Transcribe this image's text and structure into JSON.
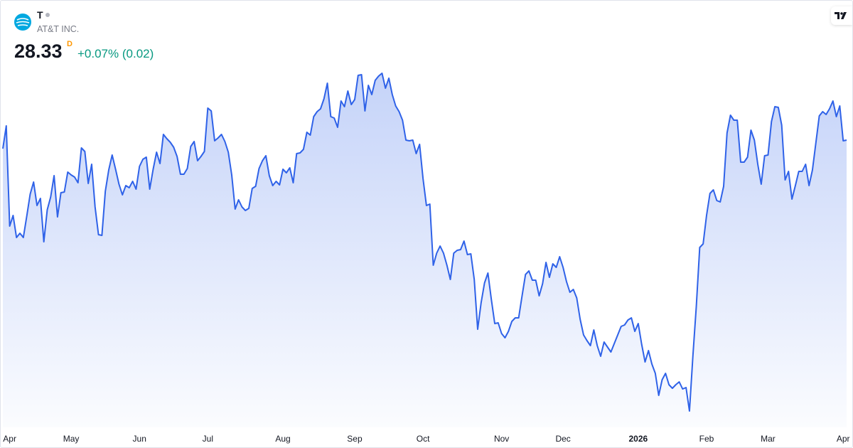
{
  "header": {
    "symbol": "T",
    "name": "AT&T INC.",
    "price": "28.33",
    "interval": "D",
    "change": "+0.07% (0.02)"
  },
  "chart_data": {
    "type": "area",
    "color": "#2f62e8",
    "ylim": [
      24.29,
      30.29
    ],
    "categories": [
      null,
      null,
      "Apr",
      null,
      null,
      null,
      null,
      null,
      null,
      null,
      null,
      null,
      null,
      null,
      null,
      null,
      null,
      null,
      null,
      null,
      "May",
      null,
      null,
      null,
      null,
      null,
      null,
      null,
      null,
      null,
      null,
      null,
      null,
      null,
      null,
      null,
      null,
      null,
      null,
      null,
      "Jun",
      null,
      null,
      null,
      null,
      null,
      null,
      null,
      null,
      null,
      null,
      null,
      null,
      null,
      null,
      null,
      null,
      null,
      null,
      null,
      "Jul",
      null,
      null,
      null,
      null,
      null,
      null,
      null,
      null,
      null,
      null,
      null,
      null,
      null,
      null,
      null,
      null,
      null,
      null,
      null,
      null,
      null,
      "Aug",
      null,
      null,
      null,
      null,
      null,
      null,
      null,
      null,
      null,
      null,
      null,
      null,
      null,
      null,
      null,
      null,
      null,
      null,
      null,
      null,
      "Sep",
      null,
      null,
      null,
      null,
      null,
      null,
      null,
      null,
      null,
      null,
      null,
      null,
      null,
      null,
      null,
      null,
      null,
      null,
      null,
      "Oct",
      null,
      null,
      null,
      null,
      null,
      null,
      null,
      null,
      null,
      null,
      null,
      null,
      null,
      null,
      null,
      null,
      null,
      null,
      null,
      null,
      null,
      null,
      "Nov",
      null,
      null,
      null,
      null,
      null,
      null,
      null,
      null,
      null,
      null,
      null,
      null,
      null,
      null,
      null,
      null,
      null,
      "Dec",
      null,
      null,
      null,
      null,
      null,
      null,
      null,
      null,
      null,
      null,
      null,
      null,
      null,
      null,
      null,
      null,
      null,
      null,
      null,
      null,
      null,
      "2026",
      null,
      null,
      null,
      null,
      null,
      null,
      null,
      null,
      null,
      null,
      null,
      null,
      null,
      null,
      null,
      null,
      null,
      null,
      null,
      "Feb",
      null,
      null,
      null,
      null,
      null,
      null,
      null,
      null,
      null,
      null,
      null,
      null,
      null,
      null,
      null,
      null,
      null,
      "Mar",
      null,
      null,
      null,
      null,
      null,
      null,
      null,
      null,
      null,
      null,
      null,
      null,
      null,
      null,
      null,
      null,
      null,
      null,
      null,
      null,
      null,
      "Apr",
      null
    ],
    "values": [
      28.21,
      28.53,
      27.12,
      27.27,
      26.96,
      27.02,
      26.96,
      27.26,
      27.57,
      27.74,
      27.41,
      27.51,
      26.9,
      27.35,
      27.53,
      27.83,
      27.25,
      27.59,
      27.6,
      27.88,
      27.84,
      27.81,
      27.73,
      28.22,
      28.17,
      27.72,
      27.99,
      27.39,
      27.0,
      26.99,
      27.61,
      27.91,
      28.12,
      27.92,
      27.71,
      27.56,
      27.69,
      27.66,
      27.75,
      27.64,
      27.96,
      28.06,
      28.09,
      27.64,
      27.92,
      28.16,
      28.0,
      28.41,
      28.35,
      28.3,
      28.23,
      28.1,
      27.85,
      27.85,
      27.93,
      28.24,
      28.31,
      28.04,
      28.1,
      28.17,
      28.78,
      28.74,
      28.32,
      28.36,
      28.41,
      28.31,
      28.16,
      27.84,
      27.36,
      27.49,
      27.39,
      27.34,
      27.37,
      27.65,
      27.68,
      27.93,
      28.04,
      28.11,
      27.83,
      27.69,
      27.75,
      27.7,
      27.92,
      27.87,
      27.94,
      27.73,
      28.14,
      28.15,
      28.2,
      28.44,
      28.4,
      28.66,
      28.73,
      28.77,
      28.91,
      29.13,
      28.66,
      28.64,
      28.51,
      28.88,
      28.8,
      29.02,
      28.83,
      28.9,
      29.24,
      29.25,
      28.74,
      29.1,
      28.97,
      29.17,
      29.23,
      29.27,
      29.06,
      29.2,
      28.97,
      28.81,
      28.73,
      28.61,
      28.33,
      28.32,
      28.33,
      28.14,
      28.27,
      27.79,
      27.41,
      27.43,
      26.57,
      26.74,
      26.84,
      26.74,
      26.57,
      26.37,
      26.74,
      26.78,
      26.79,
      26.91,
      26.72,
      26.73,
      26.37,
      25.67,
      26.04,
      26.32,
      26.46,
      26.09,
      25.75,
      25.76,
      25.61,
      25.55,
      25.64,
      25.78,
      25.83,
      25.83,
      26.14,
      26.44,
      26.49,
      26.36,
      26.36,
      26.14,
      26.31,
      26.61,
      26.4,
      26.59,
      26.54,
      26.69,
      26.54,
      26.34,
      26.19,
      26.23,
      26.11,
      25.81,
      25.59,
      25.51,
      25.44,
      25.66,
      25.44,
      25.29,
      25.49,
      25.42,
      25.35,
      25.47,
      25.59,
      25.71,
      25.73,
      25.8,
      25.83,
      25.64,
      25.75,
      25.46,
      25.21,
      25.37,
      25.18,
      25.05,
      24.74,
      24.96,
      25.05,
      24.89,
      24.84,
      24.89,
      24.93,
      24.83,
      24.85,
      24.52,
      25.29,
      25.99,
      26.82,
      26.87,
      27.27,
      27.58,
      27.63,
      27.48,
      27.46,
      27.68,
      28.43,
      28.68,
      28.61,
      28.61,
      28.02,
      28.02,
      28.09,
      28.47,
      28.33,
      27.99,
      27.71,
      28.11,
      28.12,
      28.59,
      28.8,
      28.79,
      28.54,
      27.77,
      27.89,
      27.5,
      27.69,
      27.89,
      27.89,
      27.99,
      27.69,
      27.91,
      28.29,
      28.67,
      28.73,
      28.69,
      28.77,
      28.88,
      28.66,
      28.81,
      28.32,
      28.33
    ]
  }
}
